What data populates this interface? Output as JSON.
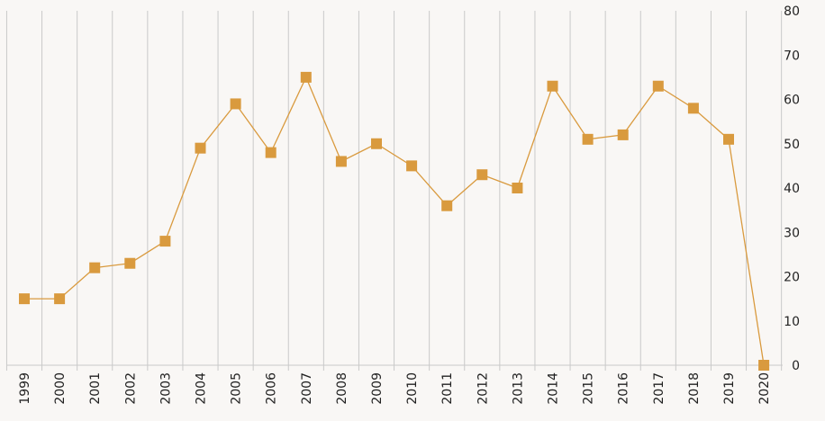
{
  "chart_data": {
    "type": "line",
    "title": "",
    "xlabel": "",
    "ylabel": "",
    "categories": [
      "1999",
      "2000",
      "2001",
      "2002",
      "2003",
      "2004",
      "2005",
      "2006",
      "2007",
      "2008",
      "2009",
      "2010",
      "2011",
      "2012",
      "2013",
      "2014",
      "2015",
      "2016",
      "2017",
      "2018",
      "2019",
      "2020"
    ],
    "series": [
      {
        "values": [
          15,
          15,
          22,
          23,
          28,
          49,
          59,
          48,
          65,
          46,
          50,
          45,
          36,
          43,
          40,
          63,
          51,
          52,
          63,
          58,
          51,
          0
        ]
      }
    ],
    "ylim": [
      0,
      80
    ],
    "yticks": [
      0,
      10,
      20,
      30,
      40,
      50,
      60,
      70,
      80
    ],
    "y_axis_side": "right",
    "grid": "vertical",
    "legend": "none",
    "colors": {
      "series": "#d99a3e",
      "grid": "#c9c9c9",
      "background": "#f9f7f5",
      "text": "#222222"
    }
  }
}
